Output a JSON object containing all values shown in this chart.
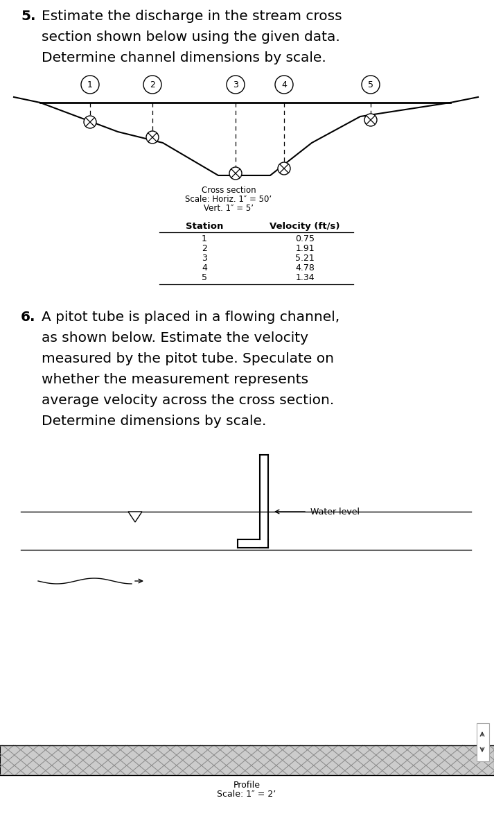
{
  "bg_color": "#ffffff",
  "text_color": "#000000",
  "line_color": "#000000",
  "cross_section_label": "Cross section",
  "cross_section_scale1": "Scale: Horiz. 1″ = 50’",
  "cross_section_scale2": "Vert. 1″ = 5’",
  "station_header": "Station",
  "velocity_header": "Velocity (ft/s)",
  "stations": [
    1,
    2,
    3,
    4,
    5
  ],
  "velocities": [
    0.75,
    1.91,
    5.21,
    4.78,
    1.34
  ],
  "water_level_label": "Water level",
  "profile_label": "Profile",
  "profile_scale": "Scale: 1″ = 2’"
}
